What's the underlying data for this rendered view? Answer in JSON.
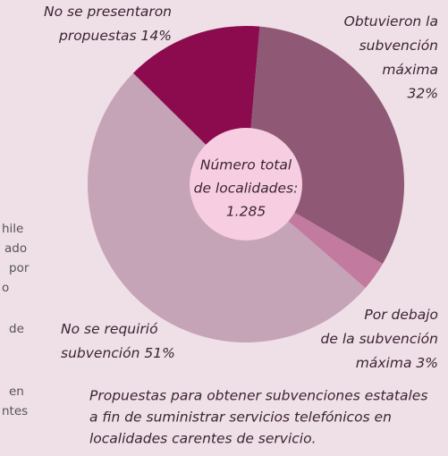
{
  "chart_data": {
    "type": "donut",
    "categories": [
      [
        "Obtuvieron la",
        "subvención",
        "máxima"
      ],
      [
        "Por debajo",
        "de la subvención",
        "máxima"
      ],
      [
        "No se requirió",
        "subvención"
      ],
      [
        "No se presentaron",
        "propuestas"
      ]
    ],
    "values": [
      32,
      3,
      51,
      14
    ],
    "value_labels": [
      "32%",
      "3%",
      "51%",
      "14%"
    ],
    "colors": [
      "#8f5976",
      "#c27a9f",
      "#c5a4b7",
      "#8c0b4f"
    ],
    "center_label": [
      "Número total",
      "de localidades:"
    ],
    "total": 1285,
    "total_label": "1.285",
    "center_color": "#f7cee1",
    "caption": [
      "Propuestas para obtener subvenciones estatales",
      "a fin de suministrar servicios telefónicos en",
      "localidades carentes de servicio."
    ],
    "side_text": [
      "hile",
      "ado",
      "por",
      "o",
      "de",
      "en",
      "ntes"
    ]
  }
}
